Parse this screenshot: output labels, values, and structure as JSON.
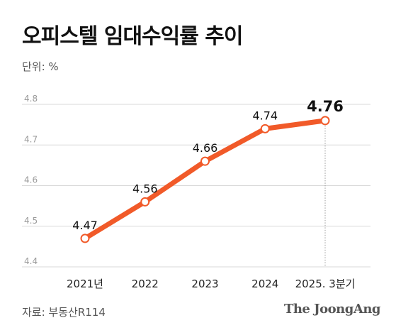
{
  "header": {
    "title": "오피스텔 임대수익률 추이",
    "unit": "단위: %"
  },
  "footer": {
    "source": "자료: 부동산R114",
    "brand": "The JoongAng"
  },
  "colors": {
    "line": "#f15a29",
    "grid": "#d9d9d9",
    "marker_fill": "#ffffff"
  },
  "chart_data": {
    "type": "line",
    "title": "오피스텔 임대수익률 추이",
    "ylabel": "단위: %",
    "categories": [
      "2021년",
      "2022",
      "2023",
      "2024",
      "2025. 3분기"
    ],
    "values": [
      4.47,
      4.56,
      4.66,
      4.74,
      4.76
    ],
    "value_labels": [
      "4.47",
      "4.56",
      "4.66",
      "4.74",
      "4.76"
    ],
    "ylim": [
      4.4,
      4.8
    ],
    "yticks": [
      4.4,
      4.5,
      4.6,
      4.7,
      4.8
    ],
    "ytick_labels": [
      "4.4",
      "4.5",
      "4.6",
      "4.7",
      "4.8"
    ],
    "grid": true,
    "highlight_last": true
  }
}
